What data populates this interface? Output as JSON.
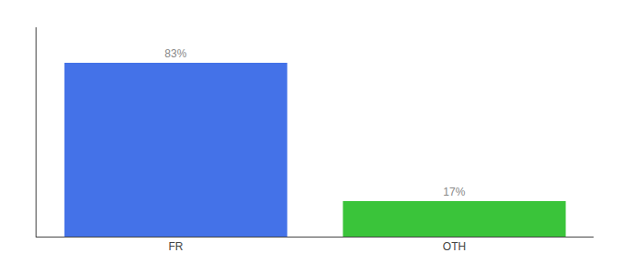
{
  "chart_data": {
    "type": "bar",
    "categories": [
      "FR",
      "OTH"
    ],
    "values": [
      83,
      17
    ],
    "value_labels": [
      "83%",
      "17%"
    ],
    "colors": [
      "#4472e8",
      "#3ac43a"
    ],
    "ylim": [
      0,
      100
    ],
    "yticks": [],
    "grid": false,
    "data_labels": true,
    "tick_labels": "x"
  }
}
